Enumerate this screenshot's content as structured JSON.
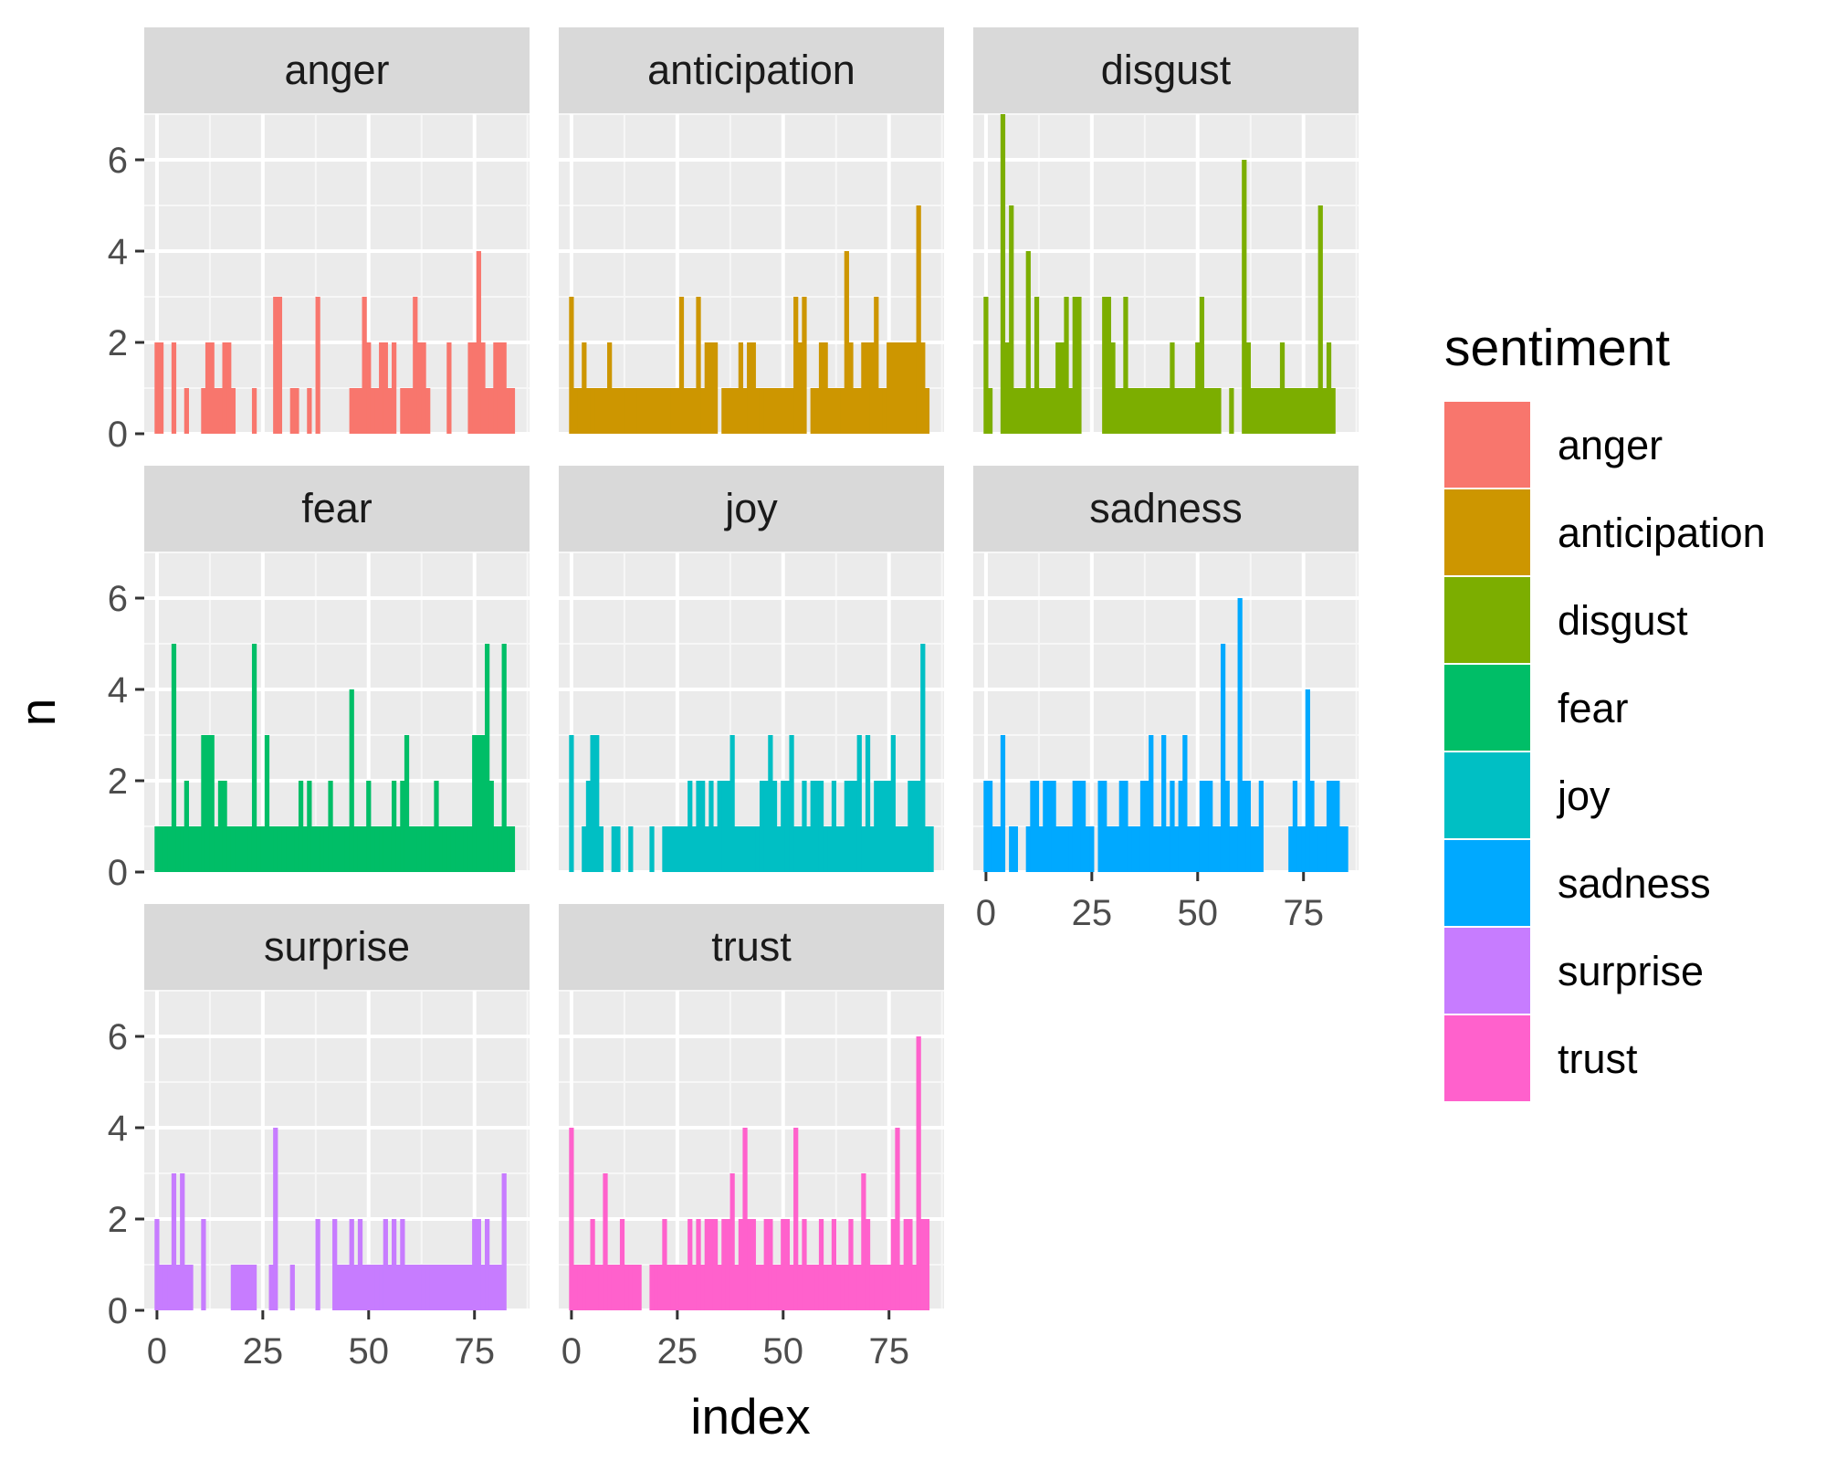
{
  "chart_data": {
    "type": "bar",
    "xlabel": "index",
    "ylabel": "n",
    "xlim": [
      -3,
      88
    ],
    "ylim": [
      0,
      7
    ],
    "x_ticks": [
      0,
      25,
      50,
      75
    ],
    "y_ticks": [
      0,
      2,
      4,
      6
    ],
    "grid": true,
    "legend": {
      "title": "sentiment",
      "position": "right"
    },
    "facets": [
      {
        "name": "anger",
        "color": "#F8766D",
        "x": [
          0,
          1,
          4,
          7,
          11,
          12,
          13,
          14,
          15,
          16,
          17,
          18,
          23,
          28,
          29,
          32,
          33,
          36,
          38,
          46,
          47,
          48,
          49,
          50,
          51,
          52,
          53,
          54,
          55,
          56,
          58,
          59,
          60,
          61,
          62,
          63,
          64,
          69,
          74,
          75,
          76,
          77,
          78,
          79,
          80,
          81,
          82,
          83,
          84
        ],
        "values": [
          2,
          2,
          2,
          1,
          1,
          2,
          2,
          1,
          1,
          2,
          2,
          1,
          1,
          3,
          3,
          1,
          1,
          1,
          3,
          1,
          1,
          1,
          3,
          2,
          1,
          1,
          2,
          2,
          1,
          2,
          1,
          1,
          1,
          3,
          2,
          2,
          1,
          2,
          2,
          2,
          4,
          2,
          1,
          1,
          2,
          2,
          2,
          1,
          1
        ]
      },
      {
        "name": "anticipation",
        "color": "#CD9600",
        "x": [
          0,
          1,
          2,
          3,
          4,
          5,
          6,
          7,
          8,
          9,
          10,
          11,
          12,
          13,
          14,
          15,
          16,
          17,
          18,
          19,
          20,
          21,
          22,
          23,
          24,
          25,
          26,
          27,
          28,
          29,
          30,
          31,
          32,
          33,
          34,
          36,
          37,
          38,
          39,
          40,
          41,
          42,
          43,
          44,
          45,
          46,
          47,
          48,
          49,
          50,
          51,
          52,
          53,
          54,
          55,
          57,
          58,
          59,
          60,
          61,
          62,
          63,
          64,
          65,
          66,
          67,
          68,
          69,
          70,
          71,
          72,
          73,
          74,
          75,
          76,
          77,
          78,
          79,
          80,
          81,
          82,
          83,
          84
        ],
        "values": [
          3,
          1,
          1,
          2,
          1,
          1,
          1,
          1,
          1,
          2,
          1,
          1,
          1,
          1,
          1,
          1,
          1,
          1,
          1,
          1,
          1,
          1,
          1,
          1,
          1,
          1,
          3,
          1,
          1,
          1,
          3,
          1,
          2,
          2,
          2,
          1,
          1,
          1,
          1,
          2,
          1,
          2,
          2,
          1,
          1,
          1,
          1,
          1,
          1,
          1,
          1,
          1,
          3,
          2,
          3,
          1,
          1,
          2,
          2,
          1,
          1,
          1,
          1,
          4,
          2,
          1,
          1,
          2,
          2,
          2,
          3,
          1,
          1,
          2,
          2,
          2,
          2,
          2,
          2,
          2,
          5,
          2,
          1
        ]
      },
      {
        "name": "disgust",
        "color": "#7CAE00",
        "x": [
          0,
          1,
          4,
          5,
          6,
          7,
          8,
          9,
          10,
          11,
          12,
          13,
          14,
          15,
          16,
          17,
          18,
          19,
          20,
          21,
          22,
          28,
          29,
          30,
          31,
          32,
          33,
          34,
          35,
          36,
          37,
          38,
          39,
          40,
          41,
          42,
          43,
          44,
          45,
          46,
          47,
          48,
          49,
          50,
          51,
          52,
          53,
          54,
          55,
          58,
          61,
          62,
          63,
          64,
          65,
          66,
          67,
          68,
          69,
          70,
          71,
          72,
          73,
          74,
          75,
          76,
          77,
          78,
          79,
          80,
          81,
          82
        ],
        "values": [
          3,
          1,
          7,
          2,
          5,
          1,
          1,
          1,
          4,
          1,
          3,
          1,
          1,
          1,
          1,
          2,
          2,
          3,
          1,
          3,
          3,
          3,
          3,
          2,
          1,
          1,
          3,
          1,
          1,
          1,
          1,
          1,
          1,
          1,
          1,
          1,
          1,
          2,
          1,
          1,
          1,
          1,
          1,
          2,
          3,
          1,
          1,
          1,
          1,
          1,
          6,
          2,
          1,
          1,
          1,
          1,
          1,
          1,
          1,
          2,
          1,
          1,
          1,
          1,
          1,
          1,
          1,
          1,
          5,
          1,
          2,
          1
        ]
      },
      {
        "name": "fear",
        "color": "#00BE67",
        "x": [
          0,
          1,
          2,
          3,
          4,
          5,
          6,
          7,
          8,
          9,
          10,
          11,
          12,
          13,
          14,
          15,
          16,
          17,
          18,
          19,
          20,
          21,
          22,
          23,
          24,
          25,
          26,
          27,
          28,
          29,
          30,
          31,
          32,
          33,
          34,
          35,
          36,
          37,
          38,
          39,
          40,
          41,
          42,
          43,
          44,
          45,
          46,
          47,
          48,
          49,
          50,
          51,
          52,
          53,
          54,
          55,
          56,
          57,
          58,
          59,
          60,
          61,
          62,
          63,
          64,
          65,
          66,
          67,
          68,
          69,
          70,
          71,
          72,
          73,
          74,
          75,
          76,
          77,
          78,
          79,
          80,
          81,
          82,
          83,
          84
        ],
        "values": [
          1,
          1,
          1,
          1,
          5,
          1,
          1,
          2,
          1,
          1,
          1,
          3,
          3,
          3,
          1,
          2,
          2,
          1,
          1,
          1,
          1,
          1,
          1,
          5,
          1,
          1,
          3,
          1,
          1,
          1,
          1,
          1,
          1,
          1,
          2,
          1,
          2,
          1,
          1,
          1,
          1,
          2,
          1,
          1,
          1,
          1,
          4,
          1,
          1,
          1,
          2,
          1,
          1,
          1,
          1,
          1,
          2,
          1,
          2,
          3,
          1,
          1,
          1,
          1,
          1,
          1,
          2,
          1,
          1,
          1,
          1,
          1,
          1,
          1,
          1,
          3,
          3,
          3,
          5,
          2,
          1,
          1,
          5,
          1,
          1
        ]
      },
      {
        "name": "joy",
        "color": "#00BFC4",
        "x": [
          0,
          3,
          4,
          5,
          6,
          7,
          10,
          11,
          14,
          19,
          22,
          23,
          24,
          25,
          26,
          27,
          28,
          29,
          30,
          31,
          32,
          33,
          34,
          35,
          36,
          37,
          38,
          39,
          40,
          41,
          42,
          43,
          44,
          45,
          46,
          47,
          48,
          49,
          50,
          51,
          52,
          53,
          54,
          55,
          56,
          57,
          58,
          59,
          60,
          61,
          62,
          63,
          64,
          65,
          66,
          67,
          68,
          69,
          70,
          71,
          72,
          73,
          74,
          75,
          76,
          77,
          78,
          79,
          80,
          81,
          82,
          83,
          84,
          85
        ],
        "values": [
          3,
          1,
          2,
          3,
          3,
          1,
          1,
          1,
          1,
          1,
          1,
          1,
          1,
          1,
          1,
          1,
          2,
          1,
          2,
          2,
          1,
          2,
          1,
          2,
          2,
          2,
          3,
          1,
          1,
          1,
          1,
          1,
          1,
          2,
          2,
          3,
          2,
          1,
          2,
          2,
          3,
          1,
          1,
          2,
          1,
          2,
          2,
          2,
          1,
          1,
          2,
          1,
          1,
          2,
          2,
          2,
          3,
          1,
          3,
          1,
          2,
          2,
          2,
          2,
          3,
          1,
          1,
          1,
          2,
          2,
          2,
          5,
          1,
          1
        ]
      },
      {
        "name": "sadness",
        "color": "#00A9FF",
        "x": [
          0,
          1,
          2,
          3,
          4,
          6,
          7,
          10,
          11,
          12,
          13,
          14,
          15,
          16,
          17,
          18,
          19,
          20,
          21,
          22,
          23,
          24,
          25,
          27,
          28,
          29,
          30,
          31,
          32,
          33,
          34,
          35,
          36,
          37,
          38,
          39,
          40,
          41,
          42,
          43,
          44,
          45,
          46,
          47,
          48,
          49,
          50,
          51,
          52,
          53,
          54,
          55,
          56,
          57,
          58,
          59,
          60,
          61,
          62,
          63,
          64,
          65,
          72,
          73,
          74,
          75,
          76,
          77,
          78,
          79,
          80,
          81,
          82,
          83,
          84,
          85
        ],
        "values": [
          2,
          2,
          1,
          1,
          3,
          1,
          1,
          1,
          2,
          2,
          1,
          2,
          2,
          2,
          1,
          1,
          1,
          1,
          2,
          2,
          2,
          1,
          1,
          2,
          2,
          1,
          1,
          1,
          2,
          2,
          1,
          1,
          1,
          2,
          2,
          3,
          1,
          1,
          3,
          1,
          2,
          1,
          2,
          3,
          1,
          1,
          1,
          2,
          2,
          2,
          1,
          1,
          5,
          2,
          1,
          1,
          6,
          2,
          2,
          1,
          1,
          2,
          1,
          2,
          1,
          1,
          4,
          2,
          1,
          1,
          1,
          2,
          2,
          2,
          1,
          1
        ]
      },
      {
        "name": "surprise",
        "color": "#C77CFF",
        "x": [
          0,
          1,
          2,
          3,
          4,
          5,
          6,
          7,
          8,
          11,
          18,
          19,
          20,
          21,
          22,
          23,
          27,
          28,
          32,
          38,
          42,
          43,
          44,
          45,
          46,
          47,
          48,
          49,
          50,
          51,
          52,
          53,
          54,
          55,
          56,
          57,
          58,
          59,
          60,
          61,
          62,
          63,
          64,
          65,
          66,
          67,
          68,
          69,
          70,
          71,
          72,
          73,
          74,
          75,
          76,
          77,
          78,
          79,
          80,
          81,
          82
        ],
        "values": [
          2,
          1,
          1,
          1,
          3,
          1,
          3,
          1,
          1,
          2,
          1,
          1,
          1,
          1,
          1,
          1,
          1,
          4,
          1,
          2,
          2,
          1,
          1,
          1,
          2,
          1,
          2,
          1,
          1,
          1,
          1,
          1,
          2,
          1,
          2,
          1,
          2,
          1,
          1,
          1,
          1,
          1,
          1,
          1,
          1,
          1,
          1,
          1,
          1,
          1,
          1,
          1,
          1,
          2,
          2,
          1,
          2,
          1,
          1,
          1,
          3
        ]
      },
      {
        "name": "trust",
        "color": "#FF61CC",
        "x": [
          0,
          1,
          2,
          3,
          4,
          5,
          6,
          7,
          8,
          9,
          10,
          11,
          12,
          13,
          14,
          15,
          16,
          19,
          20,
          21,
          22,
          23,
          24,
          25,
          26,
          27,
          28,
          29,
          30,
          31,
          32,
          33,
          34,
          35,
          36,
          37,
          38,
          39,
          40,
          41,
          42,
          43,
          44,
          45,
          46,
          47,
          48,
          49,
          50,
          51,
          52,
          53,
          54,
          55,
          56,
          57,
          58,
          59,
          60,
          61,
          62,
          63,
          64,
          65,
          66,
          67,
          68,
          69,
          70,
          71,
          72,
          73,
          74,
          75,
          76,
          77,
          78,
          79,
          80,
          81,
          82,
          83,
          84
        ],
        "values": [
          4,
          1,
          1,
          1,
          1,
          2,
          1,
          1,
          3,
          1,
          1,
          1,
          2,
          1,
          1,
          1,
          1,
          1,
          1,
          1,
          2,
          1,
          1,
          1,
          1,
          1,
          2,
          1,
          2,
          1,
          2,
          2,
          2,
          1,
          2,
          2,
          3,
          1,
          2,
          4,
          2,
          2,
          1,
          1,
          2,
          2,
          1,
          1,
          2,
          2,
          1,
          4,
          1,
          2,
          1,
          1,
          1,
          2,
          1,
          1,
          2,
          1,
          1,
          1,
          2,
          1,
          1,
          3,
          2,
          1,
          1,
          1,
          1,
          1,
          2,
          4,
          1,
          2,
          2,
          1,
          6,
          2,
          2
        ]
      }
    ]
  }
}
